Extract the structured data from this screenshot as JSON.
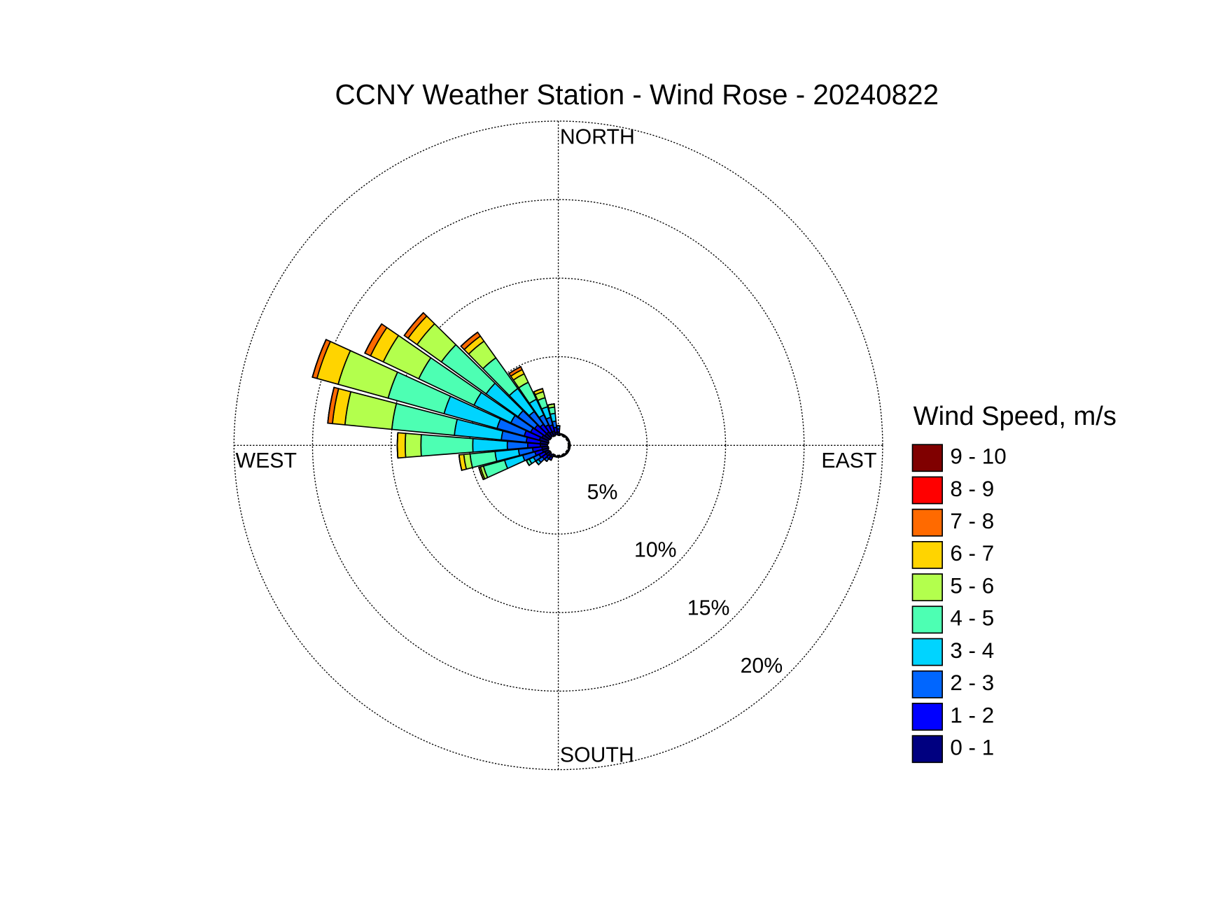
{
  "chart_data": {
    "type": "windrose",
    "title": "CCNY Weather Station - Wind Rose - 20240822",
    "compass_labels": [
      "NORTH",
      "EAST",
      "SOUTH",
      "WEST"
    ],
    "legend_title": "Wind Speed, m/s",
    "x": [
      0,
      10,
      20,
      30,
      40,
      50,
      60,
      70,
      80,
      90,
      100,
      110,
      120,
      130,
      140,
      150,
      160,
      170,
      180,
      190,
      200,
      210,
      220,
      230,
      240,
      250,
      260,
      270,
      280,
      290,
      300,
      310,
      320,
      330,
      340,
      350
    ],
    "rlim": [
      0,
      20
    ],
    "rticks": [
      {
        "value": 5,
        "label": "5%"
      },
      {
        "value": 10,
        "label": "10%"
      },
      {
        "value": 15,
        "label": "15%"
      },
      {
        "value": 20,
        "label": "20%"
      }
    ],
    "grid": true,
    "series": [
      {
        "name": "0 - 1",
        "color": "#000080",
        "values": [
          0.2,
          0.1,
          0.1,
          0.1,
          0.1,
          0.1,
          0.1,
          0.1,
          0.1,
          0.1,
          0.1,
          0.1,
          0.1,
          0.1,
          0.1,
          0.1,
          0.1,
          0.1,
          0.1,
          0.1,
          0.1,
          0.2,
          0.2,
          0.3,
          0.3,
          0.4,
          0.4,
          0.5,
          0.5,
          0.6,
          0.5,
          0.4,
          0.4,
          0.3,
          0.3,
          0.2
        ]
      },
      {
        "name": "1 - 2",
        "color": "#0000ff",
        "values": [
          0.2,
          0,
          0,
          0,
          0,
          0,
          0,
          0,
          0,
          0,
          0,
          0,
          0,
          0,
          0,
          0,
          0,
          0,
          0,
          0,
          0,
          0.2,
          0.2,
          0.3,
          0.4,
          0.5,
          0.6,
          0.8,
          0.9,
          1.0,
          0.8,
          0.8,
          0.6,
          0.5,
          0.4,
          0.3
        ]
      },
      {
        "name": "2 - 3",
        "color": "#0066ff",
        "values": [
          0.2,
          0,
          0,
          0,
          0,
          0,
          0,
          0,
          0,
          0,
          0,
          0,
          0,
          0,
          0,
          0,
          0,
          0,
          0,
          0,
          0,
          0,
          0.2,
          0.3,
          0.4,
          0.8,
          0.9,
          1.3,
          1.6,
          1.8,
          1.4,
          1.3,
          1.0,
          0.7,
          0.5,
          0.4
        ]
      },
      {
        "name": "3 - 4",
        "color": "#00d4ff",
        "values": [
          0,
          0,
          0,
          0,
          0,
          0,
          0,
          0,
          0,
          0,
          0,
          0,
          0,
          0,
          0,
          0,
          0,
          0,
          0,
          0,
          0,
          0,
          0,
          0.2,
          0.3,
          1.2,
          1.5,
          2.2,
          3.0,
          3.5,
          2.6,
          2.5,
          1.8,
          1.1,
          0.7,
          0.5
        ]
      },
      {
        "name": "4 - 5",
        "color": "#4dffb3",
        "values": [
          0,
          0,
          0,
          0,
          0,
          0,
          0,
          0,
          0,
          0,
          0,
          0,
          0,
          0,
          0,
          0,
          0,
          0,
          0,
          0,
          0,
          0,
          0,
          0,
          0.2,
          1.4,
          1.6,
          3.3,
          4.0,
          3.7,
          3.9,
          3.5,
          2.4,
          1.2,
          0.6,
          0.4
        ]
      },
      {
        "name": "5 - 6",
        "color": "#b3ff4d",
        "values": [
          0,
          0,
          0,
          0,
          0,
          0,
          0,
          0,
          0,
          0,
          0,
          0,
          0,
          0,
          0,
          0,
          0,
          0,
          0,
          0,
          0,
          0,
          0,
          0,
          0,
          0.2,
          0.4,
          1.0,
          3.0,
          3.3,
          2.5,
          1.9,
          1.3,
          0.6,
          0.4,
          0.2
        ]
      },
      {
        "name": "6 - 7",
        "color": "#ffd400",
        "values": [
          0,
          0,
          0,
          0,
          0,
          0,
          0,
          0,
          0,
          0,
          0,
          0,
          0,
          0,
          0,
          0,
          0,
          0,
          0,
          0,
          0,
          0,
          0,
          0,
          0,
          0.1,
          0.3,
          0.5,
          0.8,
          1.4,
          0.9,
          0.7,
          0.4,
          0.3,
          0.2,
          0
        ]
      },
      {
        "name": "7 - 8",
        "color": "#ff6a00",
        "values": [
          0,
          0,
          0,
          0,
          0,
          0,
          0,
          0,
          0,
          0,
          0,
          0,
          0,
          0,
          0,
          0,
          0,
          0,
          0,
          0,
          0,
          0,
          0,
          0,
          0,
          0,
          0,
          0,
          0.3,
          0.3,
          0.4,
          0.3,
          0.3,
          0.2,
          0,
          0
        ]
      },
      {
        "name": "8 - 9",
        "color": "#ff0000",
        "values": [
          0,
          0,
          0,
          0,
          0,
          0,
          0,
          0,
          0,
          0,
          0,
          0,
          0,
          0,
          0,
          0,
          0,
          0,
          0,
          0,
          0,
          0,
          0,
          0,
          0,
          0,
          0,
          0,
          0,
          0,
          0,
          0,
          0,
          0,
          0,
          0
        ]
      },
      {
        "name": "9 - 10",
        "color": "#800000",
        "values": [
          0,
          0,
          0,
          0,
          0,
          0,
          0,
          0,
          0,
          0,
          0,
          0,
          0,
          0,
          0,
          0,
          0,
          0,
          0,
          0,
          0,
          0,
          0,
          0,
          0,
          0,
          0,
          0,
          0,
          0,
          0,
          0,
          0,
          0,
          0,
          0
        ]
      }
    ]
  }
}
